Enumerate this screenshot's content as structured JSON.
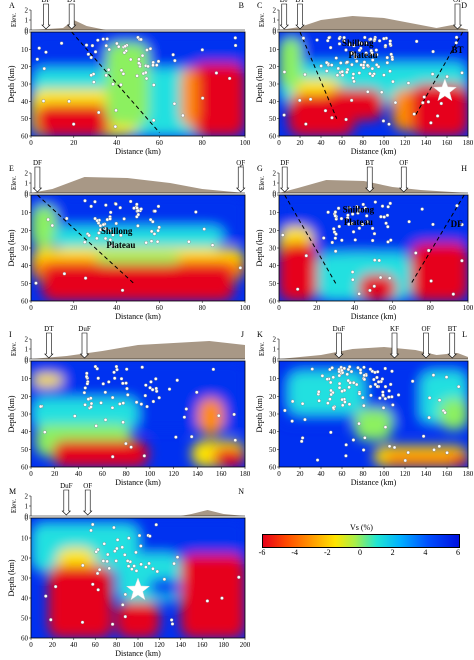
{
  "panels": [
    {
      "id": "AB",
      "left": "A",
      "right": "B",
      "xmax": 100,
      "xticks": [
        0,
        20,
        40,
        60,
        80,
        100
      ],
      "faults": [
        {
          "name": "DF",
          "x": 7
        },
        {
          "name": "DT",
          "x": 19
        }
      ],
      "topo": [
        [
          0,
          0
        ],
        [
          15,
          0.2
        ],
        [
          20,
          1.0
        ],
        [
          26,
          0.4
        ],
        [
          35,
          0
        ],
        [
          100,
          0
        ]
      ],
      "annotations": [],
      "lines": [
        [
          [
            19,
            0
          ],
          [
            60,
            58
          ]
        ]
      ],
      "stars": [],
      "pattern": "ab"
    },
    {
      "id": "CD",
      "left": "C",
      "right": "D",
      "xmax": 180,
      "xticks": [
        0,
        20,
        40,
        60,
        80,
        100,
        120,
        140,
        160,
        180
      ],
      "faults": [
        {
          "name": "DF",
          "x": 5
        },
        {
          "name": "DT",
          "x": 20
        },
        {
          "name": "OF",
          "x": 170
        }
      ],
      "topo": [
        [
          0,
          0
        ],
        [
          20,
          0.3
        ],
        [
          40,
          1.0
        ],
        [
          70,
          1.4
        ],
        [
          100,
          1.2
        ],
        [
          130,
          0.6
        ],
        [
          150,
          0.2
        ],
        [
          165,
          0.5
        ],
        [
          180,
          0
        ]
      ],
      "annotations": [
        {
          "text": "Shillong",
          "x": 75,
          "y": 8
        },
        {
          "text": "Plateau",
          "x": 80,
          "y": 15
        },
        {
          "text": "BT",
          "x": 170,
          "y": 12
        }
      ],
      "lines": [
        [
          [
            20,
            0
          ],
          [
            55,
            50
          ]
        ],
        [
          [
            175,
            0
          ],
          [
            130,
            48
          ]
        ]
      ],
      "stars": [
        {
          "x": 158,
          "y": 34
        }
      ],
      "pattern": "cd"
    },
    {
      "id": "EF",
      "left": "E",
      "right": "F",
      "xmax": 100,
      "xticks": [
        0,
        20,
        40,
        60,
        80,
        100
      ],
      "faults": [
        {
          "name": "DF",
          "x": 3
        },
        {
          "name": "OF",
          "x": 98
        }
      ],
      "topo": [
        [
          0,
          0
        ],
        [
          10,
          0.4
        ],
        [
          25,
          1.6
        ],
        [
          45,
          1.5
        ],
        [
          65,
          1.0
        ],
        [
          80,
          0.4
        ],
        [
          100,
          0
        ]
      ],
      "annotations": [
        {
          "text": "Shillong",
          "x": 40,
          "y": 22
        },
        {
          "text": "Plateau",
          "x": 42,
          "y": 30
        }
      ],
      "lines": [
        [
          [
            3,
            0
          ],
          [
            48,
            50
          ]
        ]
      ],
      "stars": [],
      "pattern": "ef"
    },
    {
      "id": "GH",
      "left": "G",
      "right": "H",
      "xmax": 100,
      "xticks": [
        0,
        20,
        40,
        60,
        80,
        100
      ],
      "faults": [
        {
          "name": "DF",
          "x": 3
        },
        {
          "name": "BT",
          "x": 48
        },
        {
          "name": "OF",
          "x": 66
        }
      ],
      "topo": [
        [
          0,
          0
        ],
        [
          10,
          0.5
        ],
        [
          25,
          1.3
        ],
        [
          45,
          1.2
        ],
        [
          60,
          0.6
        ],
        [
          75,
          0.3
        ],
        [
          100,
          0
        ]
      ],
      "annotations": [
        {
          "text": "Shillong",
          "x": 42,
          "y": 10
        },
        {
          "text": "Plateau",
          "x": 42,
          "y": 17
        },
        {
          "text": "DF",
          "x": 94,
          "y": 18
        }
      ],
      "lines": [
        [
          [
            3,
            0
          ],
          [
            30,
            50
          ]
        ],
        [
          [
            98,
            0
          ],
          [
            70,
            50
          ]
        ]
      ],
      "stars": [],
      "pattern": "gh"
    },
    {
      "id": "IJ",
      "left": "I",
      "right": "J",
      "xmax": 180,
      "xticks": [
        0,
        20,
        40,
        60,
        80,
        100,
        120,
        140,
        160,
        180
      ],
      "faults": [
        {
          "name": "DT",
          "x": 15
        },
        {
          "name": "DuF",
          "x": 45
        }
      ],
      "topo": [
        [
          0,
          0
        ],
        [
          30,
          0.3
        ],
        [
          60,
          0.8
        ],
        [
          90,
          1.4
        ],
        [
          120,
          1.6
        ],
        [
          150,
          1.8
        ],
        [
          180,
          1.4
        ]
      ],
      "annotations": [],
      "lines": [],
      "stars": [],
      "pattern": "ij"
    },
    {
      "id": "KL",
      "left": "K",
      "right": "L",
      "xmax": 180,
      "xticks": [
        0,
        20,
        40,
        60,
        80,
        100,
        120,
        140,
        160,
        180
      ],
      "faults": [
        {
          "name": "DuF",
          "x": 57
        },
        {
          "name": "KF",
          "x": 110
        },
        {
          "name": "OF",
          "x": 140
        },
        {
          "name": "BT",
          "x": 165
        }
      ],
      "topo": [
        [
          0,
          0
        ],
        [
          40,
          0.4
        ],
        [
          70,
          1.0
        ],
        [
          100,
          1.2
        ],
        [
          130,
          0.9
        ],
        [
          150,
          0.4
        ],
        [
          170,
          0.6
        ],
        [
          180,
          0.2
        ]
      ],
      "annotations": [],
      "lines": [],
      "stars": [],
      "pattern": "kl"
    },
    {
      "id": "MN",
      "left": "M",
      "right": "N",
      "xmax": 200,
      "xticks": [
        0,
        20,
        40,
        60,
        80,
        100,
        120,
        140,
        160,
        180,
        200
      ],
      "faults": [
        {
          "name": "DuF",
          "x": 33
        },
        {
          "name": "OF",
          "x": 53
        }
      ],
      "topo": [
        [
          0,
          0
        ],
        [
          140,
          0
        ],
        [
          150,
          0.2
        ],
        [
          165,
          0.6
        ],
        [
          180,
          0.2
        ],
        [
          200,
          0
        ]
      ],
      "annotations": [],
      "lines": [],
      "stars": [
        {
          "x": 100,
          "y": 36
        }
      ],
      "pattern": "mn"
    }
  ],
  "axis": {
    "xlabel": "Distance (km)",
    "ylabel": "Depth (km)",
    "elevlabel": "Elev.",
    "yticks": [
      0,
      10,
      20,
      30,
      40,
      50,
      60
    ],
    "elevticks": [
      2,
      1,
      0
    ]
  },
  "colorbar": {
    "title": "Vs (%)",
    "ticks": [
      -6,
      -4,
      -2,
      0,
      2,
      4,
      6
    ]
  },
  "colors": {
    "red": "#e6001a",
    "orange": "#ff8c00",
    "yellow": "#ffe500",
    "green": "#8cf060",
    "cyan": "#20e0e0",
    "lightblue": "#00a8ff",
    "blue": "#0030f0",
    "topo": "#a89886"
  }
}
